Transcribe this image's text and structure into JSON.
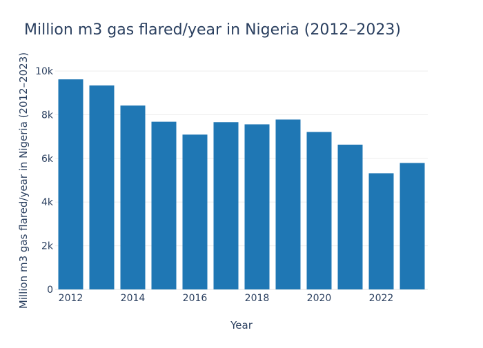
{
  "chart_data": {
    "type": "bar",
    "title": "Million m3 gas flared/year in Nigeria (2012–2023)",
    "xlabel": "Year",
    "ylabel": "Million m3 gas flared/year in Nigeria (2012–2023)",
    "categories": [
      2012,
      2013,
      2014,
      2015,
      2016,
      2017,
      2018,
      2019,
      2020,
      2021,
      2022,
      2023
    ],
    "values": [
      9620,
      9340,
      8420,
      7680,
      7090,
      7660,
      7560,
      7780,
      7210,
      6630,
      5320,
      5790
    ],
    "x_ticks": [
      {
        "value": 2012,
        "label": "2012"
      },
      {
        "value": 2014,
        "label": "2014"
      },
      {
        "value": 2016,
        "label": "2016"
      },
      {
        "value": 2018,
        "label": "2018"
      },
      {
        "value": 2020,
        "label": "2020"
      },
      {
        "value": 2022,
        "label": "2022"
      }
    ],
    "y_ticks": [
      {
        "value": 0,
        "label": "0"
      },
      {
        "value": 2000,
        "label": "2k"
      },
      {
        "value": 4000,
        "label": "4k"
      },
      {
        "value": 6000,
        "label": "6k"
      },
      {
        "value": 8000,
        "label": "8k"
      },
      {
        "value": 10000,
        "label": "10k"
      }
    ],
    "ylim": [
      0,
      10130
    ],
    "grid": true,
    "bar_color": "#1f77b4"
  }
}
